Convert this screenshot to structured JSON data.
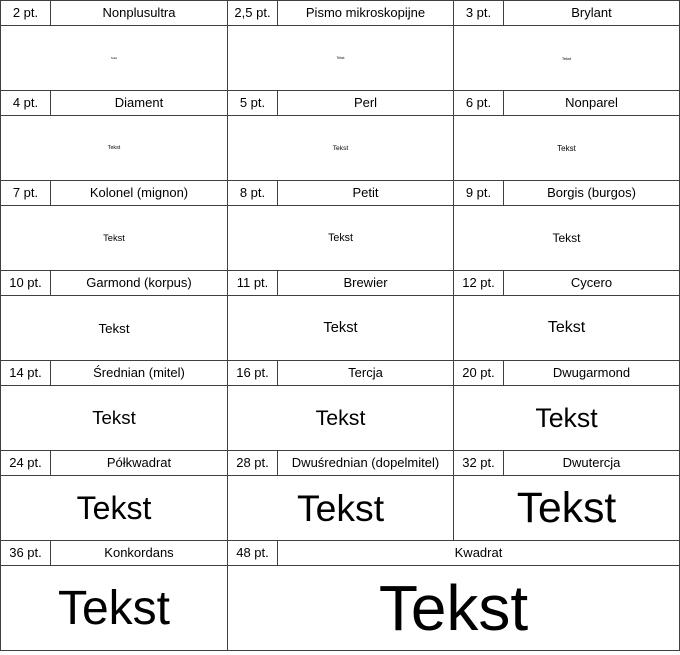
{
  "page": {
    "background_color": "#ffffff",
    "border_color": "#404040",
    "text_color": "#000000"
  },
  "table": {
    "sample_text": "Tekst",
    "rows": [
      {
        "entries": [
          {
            "size_label": "2 pt.",
            "name": "Nonplusultra",
            "pt": 2
          },
          {
            "size_label": "2,5 pt.",
            "name": "Pismo mikroskopijne",
            "pt": 2.5
          },
          {
            "size_label": "3 pt.",
            "name": "Brylant",
            "pt": 3
          }
        ]
      },
      {
        "entries": [
          {
            "size_label": "4 pt.",
            "name": "Diament",
            "pt": 4
          },
          {
            "size_label": "5 pt.",
            "name": "Perl",
            "pt": 5
          },
          {
            "size_label": "6 pt.",
            "name": "Nonparel",
            "pt": 6
          }
        ]
      },
      {
        "entries": [
          {
            "size_label": "7 pt.",
            "name": "Kolonel (mignon)",
            "pt": 7
          },
          {
            "size_label": "8 pt.",
            "name": "Petit",
            "pt": 8
          },
          {
            "size_label": "9 pt.",
            "name": "Borgis (burgos)",
            "pt": 9
          }
        ]
      },
      {
        "entries": [
          {
            "size_label": "10 pt.",
            "name": "Garmond (korpus)",
            "pt": 10
          },
          {
            "size_label": "11 pt.",
            "name": "Brewier",
            "pt": 11
          },
          {
            "size_label": "12 pt.",
            "name": "Cycero",
            "pt": 12
          }
        ]
      },
      {
        "entries": [
          {
            "size_label": "14 pt.",
            "name": "Średnian (mitel)",
            "pt": 14
          },
          {
            "size_label": "16 pt.",
            "name": "Tercja",
            "pt": 16
          },
          {
            "size_label": "20 pt.",
            "name": "Dwugarmond",
            "pt": 20
          }
        ]
      },
      {
        "entries": [
          {
            "size_label": "24 pt.",
            "name": "Półkwadrat",
            "pt": 24
          },
          {
            "size_label": "28 pt.",
            "name": "Dwuśrednian (dopelmitel)",
            "pt": 28
          },
          {
            "size_label": "32 pt.",
            "name": "Dwutercja",
            "pt": 32
          }
        ]
      },
      {
        "tall": true,
        "entries": [
          {
            "size_label": "36 pt.",
            "name": "Konkordans",
            "pt": 36,
            "label_span": 1,
            "sample_span": 2
          },
          {
            "size_label": "48 pt.",
            "name": "Kwadrat",
            "pt": 48,
            "label_span": 3,
            "sample_span": 4
          }
        ]
      }
    ]
  }
}
